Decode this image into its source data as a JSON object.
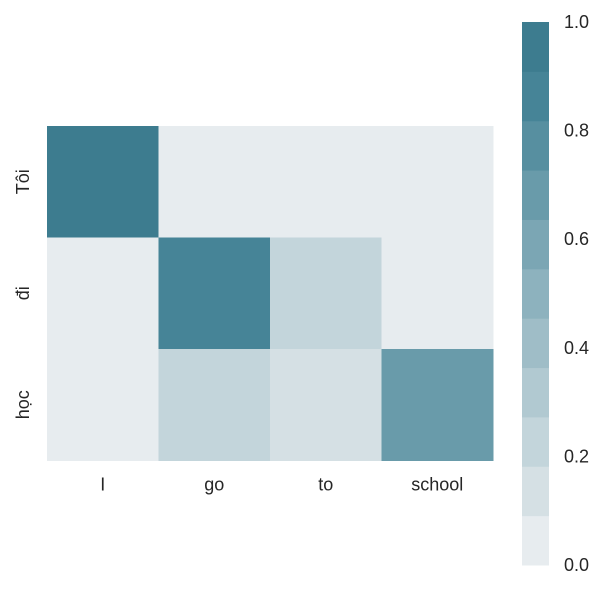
{
  "chart_data": {
    "type": "heatmap",
    "title": "",
    "xlabel": "",
    "ylabel": "",
    "x_categories": [
      "I",
      "go",
      "to",
      "school"
    ],
    "y_categories": [
      "Tôi",
      "đi",
      "học"
    ],
    "values": [
      [
        0.95,
        0.02,
        0.02,
        0.02
      ],
      [
        0.02,
        0.85,
        0.25,
        0.02
      ],
      [
        0.02,
        0.25,
        0.15,
        0.7
      ]
    ],
    "colorbar": {
      "range": [
        0.0,
        1.0
      ],
      "levels": 11,
      "ticks": [
        "0.0",
        "0.2",
        "0.4",
        "0.6",
        "0.8",
        "1.0"
      ],
      "colors": [
        "#e7ecef",
        "#d5e0e4",
        "#c3d5db",
        "#b1c9d1",
        "#9fbdc7",
        "#8db2be",
        "#7ba6b4",
        "#699baa",
        "#578fa0",
        "#468497",
        "#3d7c8f"
      ]
    },
    "grid": false
  }
}
